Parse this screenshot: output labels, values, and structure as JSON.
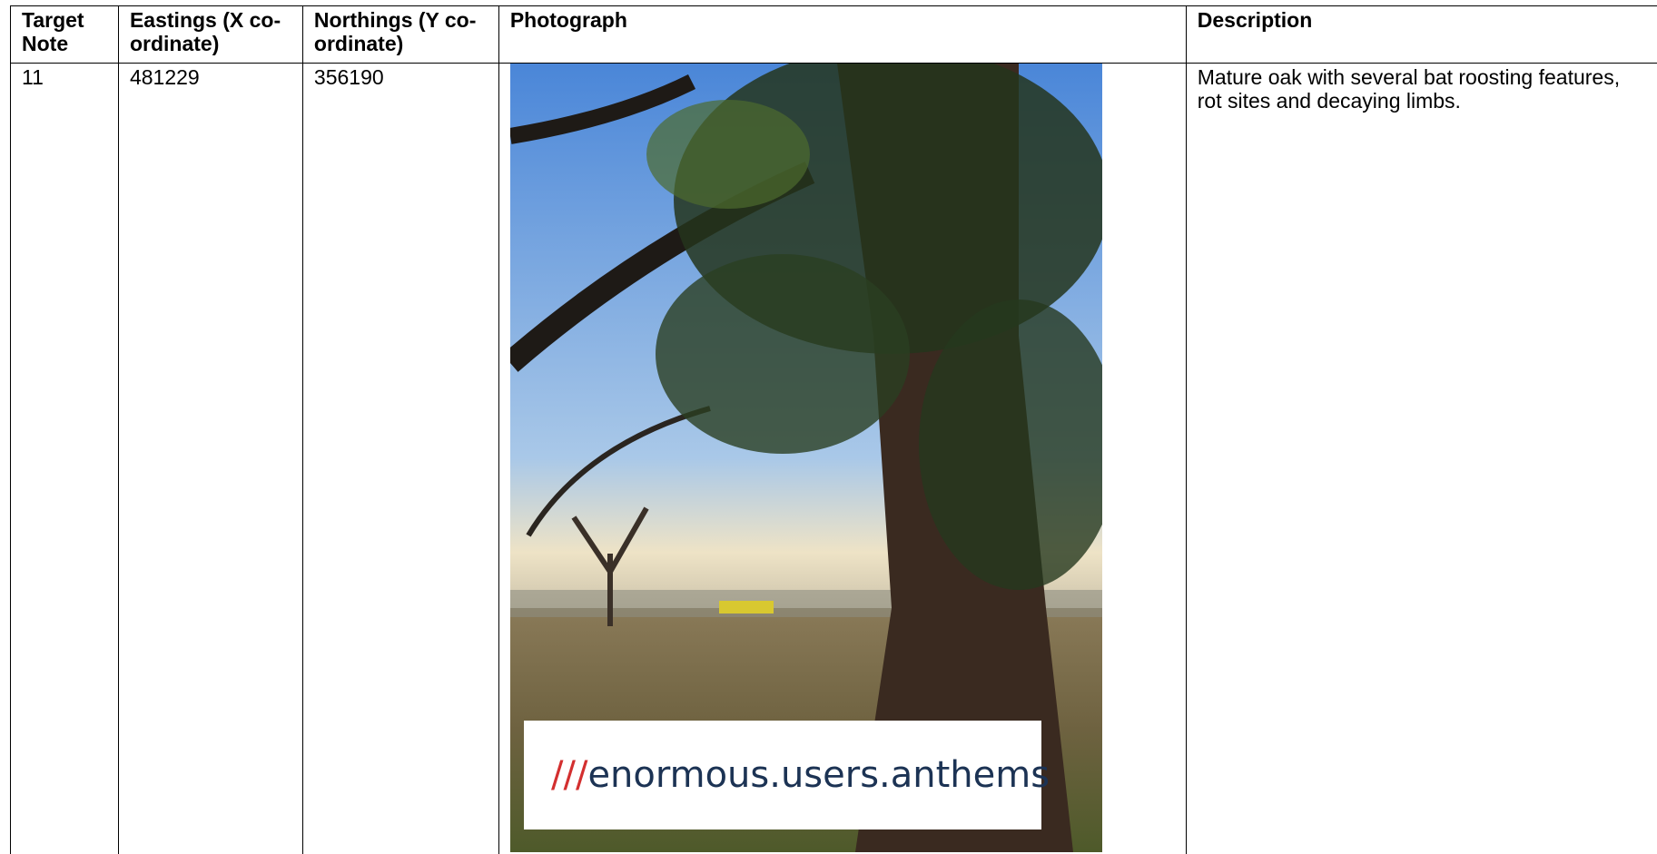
{
  "table": {
    "header": [
      "Target Note",
      "Eastings (X co-ordinate)",
      "Northings (Y co-ordinate)",
      "Photograph",
      "Description"
    ],
    "rows": [
      [
        "11",
        "481229",
        "356190",
        "Mature oak with several bat roosting features, rot sites and decaying limbs."
      ]
    ]
  },
  "photo": {
    "overlay_prefix": "///",
    "overlay_words": "enormous.users.anthems"
  }
}
